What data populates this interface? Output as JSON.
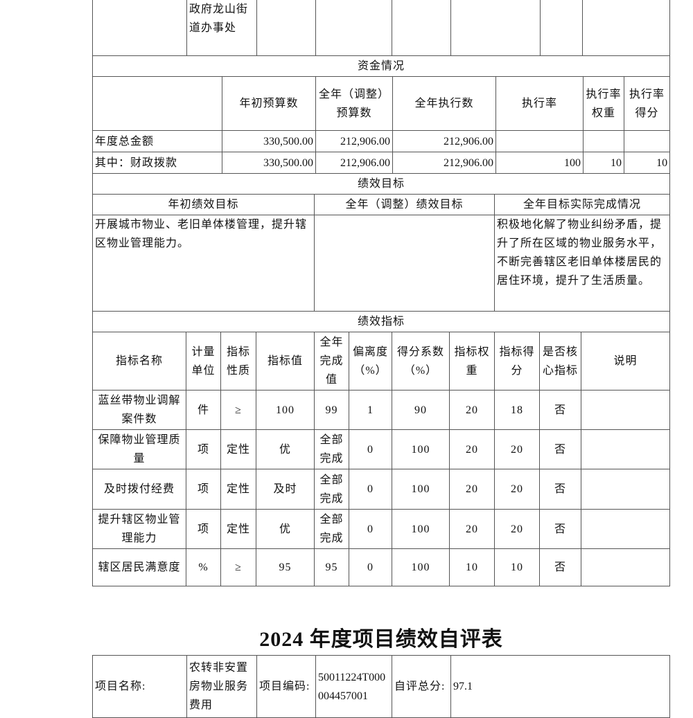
{
  "top_row": {
    "unit": "政府龙山街道办事处"
  },
  "funds": {
    "section_title": "资金情况",
    "headers": [
      "年初预算数",
      "全年（调整）预算数",
      "全年执行数",
      "执行率",
      "执行率权重",
      "执行率得分"
    ],
    "rows": [
      {
        "label": "年度总金额",
        "initial": "330,500.00",
        "adjusted": "212,906.00",
        "executed": "212,906.00",
        "rate": "",
        "weight": "",
        "score": ""
      },
      {
        "label": "其中：财政拨款",
        "initial": "330,500.00",
        "adjusted": "212,906.00",
        "executed": "212,906.00",
        "rate": "100",
        "weight": "10",
        "score": "10"
      }
    ]
  },
  "goals": {
    "section_title": "绩效目标",
    "headers": [
      "年初绩效目标",
      "全年（调整）绩效目标",
      "全年目标实际完成情况"
    ],
    "initial": "开展城市物业、老旧单体楼管理，提升辖区物业管理能力。",
    "adjusted": "",
    "actual": "积极地化解了物业纠纷矛盾，提升了所在区域的物业服务水平，不断完善辖区老旧单体楼居民的居住环境，提升了生活质量。"
  },
  "indicators": {
    "section_title": "绩效指标",
    "headers": [
      "指标名称",
      "计量单位",
      "指标性质",
      "指标值",
      "全年完成值",
      "偏离度（%）",
      "得分系数（%）",
      "指标权重",
      "指标得分",
      "是否核心指标",
      "说明"
    ],
    "rows": [
      [
        "蓝丝带物业调解案件数",
        "件",
        "≥",
        "100",
        "99",
        "1",
        "90",
        "20",
        "18",
        "否",
        ""
      ],
      [
        "保障物业管理质量",
        "项",
        "定性",
        "优",
        "全部完成",
        "0",
        "100",
        "20",
        "20",
        "否",
        ""
      ],
      [
        "及时拨付经费",
        "项",
        "定性",
        "及时",
        "全部完成",
        "0",
        "100",
        "20",
        "20",
        "否",
        ""
      ],
      [
        "提升辖区物业管理能力",
        "项",
        "定性",
        "优",
        "全部完成",
        "0",
        "100",
        "20",
        "20",
        "否",
        ""
      ],
      [
        "辖区居民满意度",
        "%",
        "≥",
        "95",
        "95",
        "0",
        "100",
        "10",
        "10",
        "否",
        ""
      ]
    ]
  },
  "next_form": {
    "title": "2024 年度项目绩效自评表",
    "project_name_label": "项目名称:",
    "project_name": "农转非安置房物业服务费用",
    "project_code_label": "项目编码:",
    "project_code": "50011224T000004457001",
    "score_label": "自评总分:",
    "score": "97.1"
  }
}
